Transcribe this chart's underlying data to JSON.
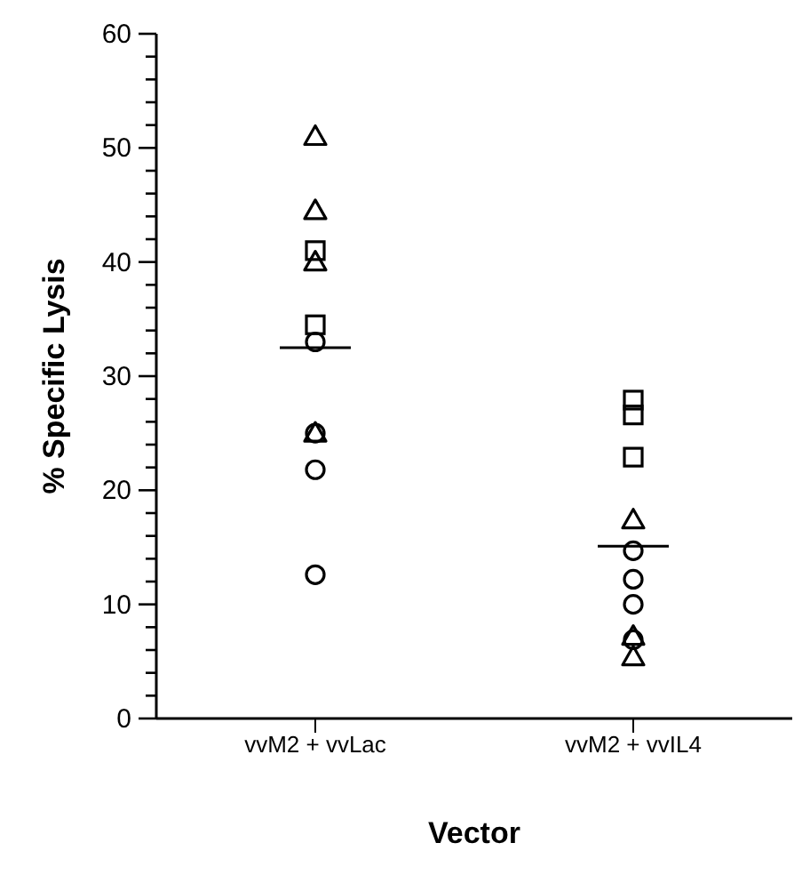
{
  "chart_data": {
    "type": "scatter",
    "xlabel": "Vector",
    "ylabel": "% Specific Lysis",
    "categories": [
      "vvM2 + vvLac",
      "vvM2 + vvIL4"
    ],
    "ylim": [
      0,
      60
    ],
    "yticks": [
      0,
      {
        "value": 2,
        "label": null
      },
      {
        "value": 4,
        "label": null
      },
      {
        "value": 6,
        "label": null
      },
      {
        "value": 8,
        "label": null
      },
      10,
      {
        "value": 12,
        "label": null
      },
      {
        "value": 14,
        "label": null
      },
      {
        "value": 16,
        "label": null
      },
      {
        "value": 18,
        "label": null
      },
      20,
      {
        "value": 22,
        "label": null
      },
      {
        "value": 24,
        "label": null
      },
      {
        "value": 26,
        "label": null
      },
      {
        "value": 28,
        "label": null
      },
      30,
      {
        "value": 32,
        "label": null
      },
      {
        "value": 34,
        "label": null
      },
      {
        "value": 36,
        "label": null
      },
      {
        "value": 38,
        "label": null
      },
      40,
      {
        "value": 42,
        "label": null
      },
      {
        "value": 44,
        "label": null
      },
      {
        "value": 46,
        "label": null
      },
      {
        "value": 48,
        "label": null
      },
      50,
      {
        "value": 52,
        "label": null
      },
      {
        "value": 54,
        "label": null
      },
      {
        "value": 56,
        "label": null
      },
      {
        "value": 58,
        "label": null
      },
      60
    ],
    "series": [
      {
        "marker": "triangle",
        "color": "#000000",
        "x": [
          "vvM2 + vvLac",
          "vvM2 + vvLac",
          "vvM2 + vvLac",
          "vvM2 + vvLac",
          "vvM2 + vvIL4",
          "vvM2 + vvIL4",
          "vvM2 + vvIL4"
        ],
        "values": [
          51,
          44.5,
          40,
          25,
          17.4,
          7.2,
          5.4
        ]
      },
      {
        "marker": "square",
        "color": "#000000",
        "x": [
          "vvM2 + vvLac",
          "vvM2 + vvLac",
          "vvM2 + vvIL4",
          "vvM2 + vvIL4",
          "vvM2 + vvIL4"
        ],
        "values": [
          41,
          34.5,
          27.9,
          26.6,
          22.9
        ]
      },
      {
        "marker": "circle",
        "color": "#000000",
        "x": [
          "vvM2 + vvLac",
          "vvM2 + vvLac",
          "vvM2 + vvLac",
          "vvM2 + vvLac",
          "vvM2 + vvIL4",
          "vvM2 + vvIL4",
          "vvM2 + vvIL4",
          "vvM2 + vvIL4"
        ],
        "values": [
          33,
          25,
          21.8,
          12.6,
          14.7,
          12.2,
          10,
          6.9
        ]
      },
      {
        "type": "box",
        "color": "#000000",
        "boxes": [
          {
            "low": 32.5,
            "q1": 32.5,
            "median": 32.5,
            "q3": 32.5,
            "high": 32.5
          },
          {
            "low": 15.1,
            "q1": 15.1,
            "median": 15.1,
            "q3": 15.1,
            "high": 15.1
          }
        ]
      }
    ]
  }
}
